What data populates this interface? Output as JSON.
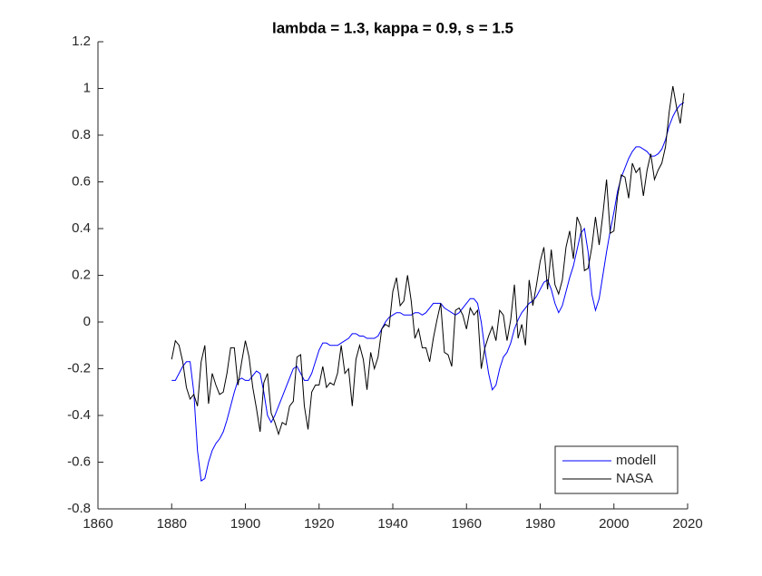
{
  "chart_data": {
    "type": "line",
    "title": "lambda = 1.3, kappa = 0.9, s = 1.5",
    "x": [
      1880,
      1881,
      1882,
      1883,
      1884,
      1885,
      1886,
      1887,
      1888,
      1889,
      1890,
      1891,
      1892,
      1893,
      1894,
      1895,
      1896,
      1897,
      1898,
      1899,
      1900,
      1901,
      1902,
      1903,
      1904,
      1905,
      1906,
      1907,
      1908,
      1909,
      1910,
      1911,
      1912,
      1913,
      1914,
      1915,
      1916,
      1917,
      1918,
      1919,
      1920,
      1921,
      1922,
      1923,
      1924,
      1925,
      1926,
      1927,
      1928,
      1929,
      1930,
      1931,
      1932,
      1933,
      1934,
      1935,
      1936,
      1937,
      1938,
      1939,
      1940,
      1941,
      1942,
      1943,
      1944,
      1945,
      1946,
      1947,
      1948,
      1949,
      1950,
      1951,
      1952,
      1953,
      1954,
      1955,
      1956,
      1957,
      1958,
      1959,
      1960,
      1961,
      1962,
      1963,
      1964,
      1965,
      1966,
      1967,
      1968,
      1969,
      1970,
      1971,
      1972,
      1973,
      1974,
      1975,
      1976,
      1977,
      1978,
      1979,
      1980,
      1981,
      1982,
      1983,
      1984,
      1985,
      1986,
      1987,
      1988,
      1989,
      1990,
      1991,
      1992,
      1993,
      1994,
      1995,
      1996,
      1997,
      1998,
      1999,
      2000,
      2001,
      2002,
      2003,
      2004,
      2005,
      2006,
      2007,
      2008,
      2009,
      2010,
      2011,
      2012,
      2013,
      2014,
      2015,
      2016,
      2017,
      2018,
      2019
    ],
    "series": [
      {
        "name": "modell",
        "color": "#0000ff",
        "values": [
          -0.25,
          -0.25,
          -0.22,
          -0.19,
          -0.17,
          -0.17,
          -0.3,
          -0.55,
          -0.68,
          -0.67,
          -0.6,
          -0.55,
          -0.52,
          -0.5,
          -0.47,
          -0.42,
          -0.36,
          -0.3,
          -0.25,
          -0.24,
          -0.25,
          -0.25,
          -0.23,
          -0.21,
          -0.22,
          -0.3,
          -0.4,
          -0.43,
          -0.4,
          -0.36,
          -0.32,
          -0.28,
          -0.24,
          -0.2,
          -0.19,
          -0.22,
          -0.25,
          -0.25,
          -0.22,
          -0.17,
          -0.12,
          -0.09,
          -0.09,
          -0.1,
          -0.1,
          -0.1,
          -0.09,
          -0.08,
          -0.07,
          -0.05,
          -0.05,
          -0.06,
          -0.06,
          -0.07,
          -0.07,
          -0.07,
          -0.06,
          -0.03,
          0.0,
          0.02,
          0.03,
          0.04,
          0.04,
          0.03,
          0.03,
          0.03,
          0.04,
          0.04,
          0.03,
          0.04,
          0.06,
          0.08,
          0.08,
          0.08,
          0.06,
          0.05,
          0.04,
          0.03,
          0.04,
          0.06,
          0.08,
          0.1,
          0.1,
          0.08,
          0.0,
          -0.12,
          -0.22,
          -0.29,
          -0.27,
          -0.2,
          -0.15,
          -0.13,
          -0.09,
          -0.03,
          0.01,
          0.04,
          0.06,
          0.08,
          0.09,
          0.11,
          0.14,
          0.17,
          0.18,
          0.14,
          0.08,
          0.04,
          0.07,
          0.13,
          0.19,
          0.24,
          0.31,
          0.38,
          0.4,
          0.3,
          0.12,
          0.05,
          0.1,
          0.2,
          0.3,
          0.39,
          0.47,
          0.56,
          0.62,
          0.66,
          0.7,
          0.73,
          0.75,
          0.75,
          0.74,
          0.73,
          0.71,
          0.71,
          0.72,
          0.74,
          0.78,
          0.84,
          0.88,
          0.91,
          0.93,
          0.94
        ]
      },
      {
        "name": "NASA",
        "color": "#000000",
        "values": [
          -0.16,
          -0.08,
          -0.1,
          -0.17,
          -0.28,
          -0.33,
          -0.31,
          -0.36,
          -0.17,
          -0.1,
          -0.35,
          -0.22,
          -0.27,
          -0.31,
          -0.3,
          -0.22,
          -0.11,
          -0.11,
          -0.27,
          -0.17,
          -0.08,
          -0.15,
          -0.28,
          -0.37,
          -0.47,
          -0.26,
          -0.22,
          -0.39,
          -0.43,
          -0.48,
          -0.43,
          -0.44,
          -0.36,
          -0.34,
          -0.15,
          -0.14,
          -0.36,
          -0.46,
          -0.3,
          -0.27,
          -0.27,
          -0.19,
          -0.28,
          -0.26,
          -0.27,
          -0.22,
          -0.1,
          -0.22,
          -0.2,
          -0.36,
          -0.16,
          -0.1,
          -0.16,
          -0.29,
          -0.13,
          -0.2,
          -0.15,
          -0.03,
          -0.01,
          -0.02,
          0.13,
          0.19,
          0.07,
          0.09,
          0.2,
          0.09,
          -0.07,
          -0.03,
          -0.11,
          -0.11,
          -0.17,
          -0.07,
          0.01,
          0.08,
          -0.13,
          -0.14,
          -0.19,
          0.05,
          0.06,
          0.03,
          -0.03,
          0.06,
          0.03,
          0.05,
          -0.2,
          -0.11,
          -0.06,
          -0.02,
          -0.08,
          0.05,
          0.03,
          -0.08,
          0.01,
          0.16,
          -0.07,
          -0.01,
          -0.1,
          0.18,
          0.07,
          0.16,
          0.26,
          0.32,
          0.14,
          0.31,
          0.16,
          0.12,
          0.18,
          0.32,
          0.39,
          0.27,
          0.45,
          0.41,
          0.22,
          0.23,
          0.32,
          0.45,
          0.33,
          0.46,
          0.61,
          0.38,
          0.39,
          0.54,
          0.63,
          0.62,
          0.53,
          0.68,
          0.64,
          0.66,
          0.54,
          0.65,
          0.72,
          0.61,
          0.65,
          0.68,
          0.75,
          0.9,
          1.01,
          0.92,
          0.85,
          0.98
        ]
      }
    ],
    "xlim": [
      1860,
      2020
    ],
    "xticks": [
      1860,
      1880,
      1900,
      1920,
      1940,
      1960,
      1980,
      2000,
      2020
    ],
    "ylim": [
      -0.8,
      1.2
    ],
    "yticks": [
      -0.8,
      -0.6,
      -0.4,
      -0.2,
      0,
      0.2,
      0.4,
      0.6,
      0.8,
      1,
      1.2
    ],
    "legend": "southeast"
  }
}
